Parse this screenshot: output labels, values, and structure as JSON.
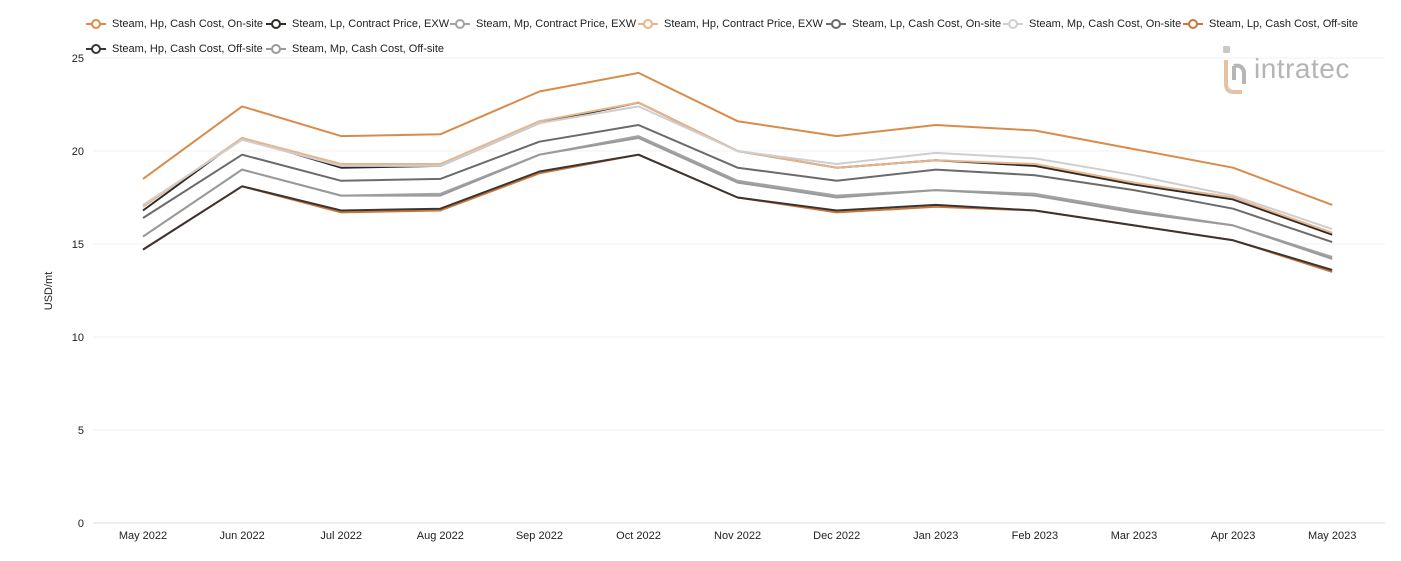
{
  "chart_data": {
    "type": "line",
    "title": "",
    "xlabel": "",
    "ylabel": "USD/mt",
    "ylim": [
      0,
      25
    ],
    "yticks": [
      0,
      5,
      10,
      15,
      20,
      25
    ],
    "grid": true,
    "legend_position": "top",
    "categories": [
      "May 2022",
      "Jun 2022",
      "Jul 2022",
      "Aug 2022",
      "Sep 2022",
      "Oct 2022",
      "Nov 2022",
      "Dec 2022",
      "Jan 2023",
      "Feb 2023",
      "Mar 2023",
      "Apr 2023",
      "May 2023"
    ],
    "series": [
      {
        "name": "Steam, Hp, Cash Cost, On-site",
        "color": "#d98b4a",
        "values": [
          18.5,
          22.4,
          20.8,
          20.9,
          23.2,
          24.2,
          21.6,
          20.8,
          21.4,
          21.1,
          20.1,
          19.1,
          17.1
        ]
      },
      {
        "name": "Steam, Lp, Contract Price, EXW",
        "color": "#2e2a27",
        "values": [
          16.8,
          20.7,
          19.1,
          19.2,
          21.5,
          22.6,
          20.0,
          19.1,
          19.5,
          19.2,
          18.2,
          17.4,
          15.5
        ]
      },
      {
        "name": "Steam, Mp, Contract Price, EXW",
        "color": "#a3a3a3",
        "values": [
          15.4,
          19.0,
          17.6,
          17.7,
          19.8,
          20.8,
          18.4,
          17.6,
          17.9,
          17.7,
          16.8,
          16.0,
          14.3
        ]
      },
      {
        "name": "Steam, Hp, Contract Price, EXW",
        "color": "#e8b48c",
        "values": [
          17.0,
          20.7,
          19.3,
          19.3,
          21.6,
          22.6,
          20.0,
          19.1,
          19.5,
          19.3,
          18.3,
          17.5,
          15.6
        ]
      },
      {
        "name": "Steam, Lp, Cash Cost, On-site",
        "color": "#6b6b6b",
        "values": [
          16.4,
          19.8,
          18.4,
          18.5,
          20.5,
          21.4,
          19.1,
          18.4,
          19.0,
          18.7,
          17.9,
          16.9,
          15.1
        ]
      },
      {
        "name": "Steam, Mp, Cash Cost, On-site",
        "color": "#cfcfcf",
        "values": [
          17.1,
          20.6,
          19.2,
          19.2,
          21.5,
          22.4,
          20.0,
          19.3,
          19.9,
          19.6,
          18.7,
          17.6,
          15.8
        ]
      },
      {
        "name": "Steam, Lp, Cash Cost, Off-site",
        "color": "#c9773d",
        "values": [
          14.7,
          18.1,
          16.7,
          16.8,
          18.8,
          19.8,
          17.5,
          16.7,
          17.0,
          16.8,
          16.0,
          15.2,
          13.5
        ]
      },
      {
        "name": "Steam, Hp, Cash Cost, Off-site",
        "color": "#3a3532",
        "values": [
          14.7,
          18.1,
          16.8,
          16.9,
          18.9,
          19.8,
          17.5,
          16.8,
          17.1,
          16.8,
          16.0,
          15.2,
          13.6
        ]
      },
      {
        "name": "Steam, Mp, Cash Cost, Off-site",
        "color": "#9a9a9a",
        "values": [
          15.4,
          19.0,
          17.6,
          17.6,
          19.8,
          20.7,
          18.3,
          17.5,
          17.9,
          17.6,
          16.7,
          16.0,
          14.2
        ]
      }
    ]
  },
  "watermark": {
    "text": "intratec",
    "icon": "intratec-logo-icon"
  }
}
